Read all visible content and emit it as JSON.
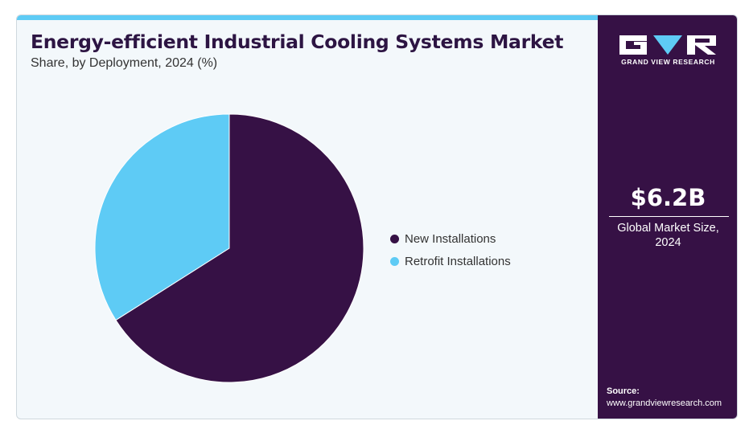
{
  "title": "Energy-efficient Industrial Cooling Systems Market",
  "subtitle": "Share, by Deployment, 2024 (%)",
  "colors": {
    "accent": "#5ecbf5",
    "dark": "#361145",
    "title": "#2d1543",
    "panel_bg": "#f3f8fb"
  },
  "chart_data": {
    "type": "pie",
    "title": "Energy-efficient Industrial Cooling Systems Market",
    "subtitle": "Share, by Deployment, 2024 (%)",
    "start_angle_deg": 0,
    "direction": "clockwise",
    "legend_position": "right",
    "slices": [
      {
        "label": "New Installations",
        "value": 66,
        "color": "#361145"
      },
      {
        "label": "Retrofit Installations",
        "value": 34,
        "color": "#5ecbf5"
      }
    ]
  },
  "sidebar": {
    "brand": "GRAND VIEW RESEARCH",
    "market_size_value": "$6.2B",
    "market_size_label": "Global Market Size, 2024",
    "source_title": "Source:",
    "source_url": "www.grandviewresearch.com"
  }
}
